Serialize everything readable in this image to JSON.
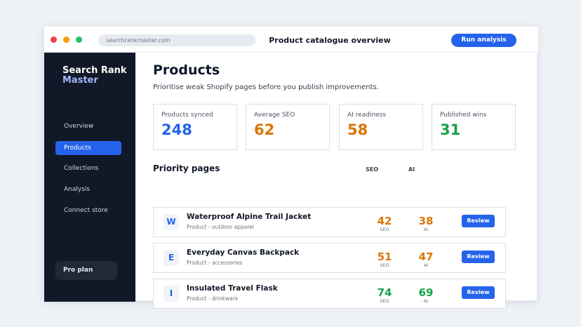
{
  "colors": {
    "primary": "#2563eb",
    "sidebar_bg": "#111827",
    "good": "#16a34a",
    "warn": "#d97706",
    "blue_value": "#2563eb"
  },
  "titlebar": {
    "url": "searchrankmaster.com",
    "title": "Product catalogue overview",
    "run_button": "Run analysis"
  },
  "sidebar": {
    "brand_line1": "Search Rank",
    "brand_line2": "Master",
    "items": [
      {
        "label": "Overview",
        "active": false
      },
      {
        "label": "Products",
        "active": true
      },
      {
        "label": "Collections",
        "active": false
      },
      {
        "label": "Analysis",
        "active": false
      },
      {
        "label": "Connect store",
        "active": false
      }
    ],
    "plan": "Pro plan"
  },
  "main": {
    "title": "Products",
    "subtitle": "Prioritise weak Shopify pages before you publish improvements.",
    "stats": [
      {
        "label": "Products synced",
        "value": "248",
        "color": "#2563eb"
      },
      {
        "label": "Average SEO",
        "value": "62",
        "color": "#d97706"
      },
      {
        "label": "AI readiness",
        "value": "58",
        "color": "#d97706"
      },
      {
        "label": "Published wins",
        "value": "31",
        "color": "#16a34a"
      }
    ],
    "priority": {
      "title": "Priority pages",
      "col_seo": "SEO",
      "col_ai": "AI",
      "rows": [
        {
          "initial": "W",
          "title": "Waterproof Alpine Trail Jacket",
          "sub": "Product - outdoor apparel",
          "seo": "42",
          "ai": "38",
          "seo_color": "#d97706",
          "ai_color": "#d97706",
          "seo_label": "SEO",
          "ai_label": "AI",
          "button": "Review"
        },
        {
          "initial": "E",
          "title": "Everyday Canvas Backpack",
          "sub": "Product - accessories",
          "seo": "51",
          "ai": "47",
          "seo_color": "#d97706",
          "ai_color": "#d97706",
          "seo_label": "SEO",
          "ai_label": "AI",
          "button": "Review"
        },
        {
          "initial": "I",
          "title": "Insulated Travel Flask",
          "sub": "Product - drinkware",
          "seo": "74",
          "ai": "69",
          "seo_color": "#16a34a",
          "ai_color": "#16a34a",
          "seo_label": "SEO",
          "ai_label": "AI",
          "button": "Review"
        }
      ]
    }
  }
}
